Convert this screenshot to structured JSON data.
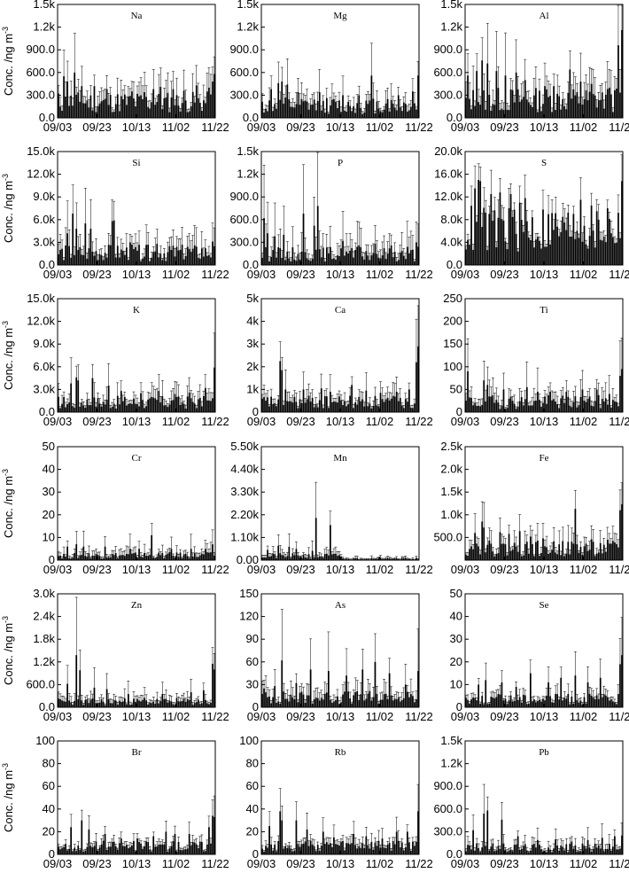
{
  "figure": {
    "ylabel": "Conc. /ng m",
    "ylabel_sup": "-3",
    "xticks": [
      "09/03",
      "09/23",
      "10/13",
      "11/02",
      "11/22"
    ]
  },
  "chart_data": [
    {
      "type": "bar",
      "title": "Na",
      "ylim": [
        0,
        1500
      ],
      "yticks": [
        "0.0",
        "300.0",
        "600.0",
        "900.0",
        "1.2k",
        "1.5k"
      ],
      "seed": 11,
      "base": 260,
      "spikes": [
        [
          3,
          550
        ],
        [
          5,
          480
        ],
        [
          9,
          600
        ],
        [
          13,
          420
        ],
        [
          20,
          420
        ],
        [
          27,
          380
        ],
        [
          41,
          350
        ],
        [
          48,
          340
        ],
        [
          53,
          380
        ],
        [
          57,
          410
        ],
        [
          64,
          380
        ],
        [
          70,
          360
        ],
        [
          77,
          430
        ],
        [
          84,
          400
        ],
        [
          86,
          480
        ],
        [
          87,
          580
        ]
      ],
      "errFrac": 0.7
    },
    {
      "type": "bar",
      "title": "Mg",
      "ylim": [
        0,
        1500
      ],
      "yticks": [
        "0.0",
        "300.0",
        "600.0",
        "900.0",
        "1.2k",
        "1.5k"
      ],
      "seed": 12,
      "base": 200,
      "spikes": [
        [
          5,
          380
        ],
        [
          9,
          460
        ],
        [
          11,
          480
        ],
        [
          14,
          440
        ],
        [
          20,
          340
        ],
        [
          32,
          340
        ],
        [
          45,
          300
        ],
        [
          54,
          300
        ],
        [
          61,
          560
        ],
        [
          70,
          250
        ],
        [
          76,
          300
        ],
        [
          84,
          350
        ],
        [
          87,
          560
        ]
      ],
      "errFrac": 0.7
    },
    {
      "type": "bar",
      "title": "Al",
      "ylim": [
        0,
        1500
      ],
      "yticks": [
        "0.0",
        "300.0",
        "600.0",
        "900.0",
        "1.2k",
        "1.5k"
      ],
      "seed": 13,
      "base": 300,
      "spikes": [
        [
          1,
          560
        ],
        [
          6,
          620
        ],
        [
          9,
          760
        ],
        [
          12,
          720
        ],
        [
          17,
          620
        ],
        [
          22,
          560
        ],
        [
          28,
          600
        ],
        [
          33,
          500
        ],
        [
          44,
          420
        ],
        [
          49,
          420
        ],
        [
          58,
          640
        ],
        [
          64,
          480
        ],
        [
          70,
          450
        ],
        [
          80,
          400
        ],
        [
          85,
          960
        ],
        [
          87,
          1160
        ]
      ],
      "errFrac": 0.8
    },
    {
      "type": "bar",
      "title": "Si",
      "ylim": [
        0,
        15000
      ],
      "yticks": [
        "0.0",
        "3.0k",
        "6.0k",
        "9.0k",
        "12.0k",
        "15.0k"
      ],
      "seed": 14,
      "base": 2000,
      "spikes": [
        [
          5,
          4200
        ],
        [
          8,
          6800
        ],
        [
          10,
          4800
        ],
        [
          15,
          5500
        ],
        [
          18,
          4800
        ],
        [
          30,
          5800
        ],
        [
          31,
          5900
        ],
        [
          40,
          3000
        ],
        [
          55,
          2800
        ],
        [
          62,
          2500
        ],
        [
          72,
          2400
        ],
        [
          80,
          2200
        ],
        [
          86,
          3100
        ]
      ],
      "errFrac": 0.8
    },
    {
      "type": "bar",
      "title": "P",
      "ylim": [
        0,
        1500
      ],
      "yticks": [
        "0.0",
        "300.0",
        "600.0",
        "900.0",
        "1.2k",
        "1.5k"
      ],
      "seed": 15,
      "base": 180,
      "spikes": [
        [
          1,
          620
        ],
        [
          3,
          420
        ],
        [
          7,
          380
        ],
        [
          12,
          400
        ],
        [
          23,
          680
        ],
        [
          29,
          520
        ],
        [
          31,
          780
        ],
        [
          45,
          320
        ],
        [
          54,
          260
        ],
        [
          63,
          280
        ],
        [
          72,
          260
        ],
        [
          81,
          240
        ],
        [
          86,
          300
        ]
      ],
      "errFrac": 1.1
    },
    {
      "type": "bar",
      "title": "S",
      "ylim": [
        0,
        20000
      ],
      "yticks": [
        "0.0",
        "4.0k",
        "8.0k",
        "12.0k",
        "16.0k",
        "20.0k"
      ],
      "seed": 16,
      "base": 8000,
      "spikes": [
        [
          5,
          13500
        ],
        [
          7,
          15000
        ],
        [
          8,
          14800
        ],
        [
          14,
          12500
        ],
        [
          19,
          12800
        ],
        [
          25,
          12500
        ],
        [
          30,
          11000
        ],
        [
          33,
          11800
        ],
        [
          49,
          6200
        ],
        [
          55,
          7500
        ],
        [
          60,
          9000
        ],
        [
          64,
          11500
        ],
        [
          74,
          8000
        ],
        [
          79,
          10000
        ],
        [
          87,
          14800
        ]
      ],
      "errFrac": 0.3
    },
    {
      "type": "bar",
      "title": "K",
      "ylim": [
        0,
        15000
      ],
      "yticks": [
        "0.0",
        "3.0k",
        "6.0k",
        "9.0k",
        "12.0k",
        "15.0k"
      ],
      "seed": 17,
      "base": 1600,
      "spikes": [
        [
          7,
          3800
        ],
        [
          10,
          4600
        ],
        [
          11,
          4200
        ],
        [
          19,
          4500
        ],
        [
          28,
          3500
        ],
        [
          35,
          2800
        ],
        [
          46,
          2500
        ],
        [
          56,
          2800
        ],
        [
          65,
          2400
        ],
        [
          73,
          2600
        ],
        [
          82,
          3200
        ],
        [
          87,
          5900
        ]
      ],
      "errFrac": 0.8
    },
    {
      "type": "bar",
      "title": "Ca",
      "ylim": [
        0,
        5000
      ],
      "yticks": [
        "0",
        "1k",
        "2k",
        "3k",
        "4k",
        "5k"
      ],
      "seed": 18,
      "base": 550,
      "spikes": [
        [
          10,
          2250
        ],
        [
          11,
          1850
        ],
        [
          13,
          1000
        ],
        [
          23,
          1000
        ],
        [
          33,
          1050
        ],
        [
          38,
          900
        ],
        [
          50,
          1200
        ],
        [
          58,
          950
        ],
        [
          66,
          850
        ],
        [
          75,
          900
        ],
        [
          82,
          1000
        ],
        [
          86,
          2200
        ],
        [
          87,
          2900
        ]
      ],
      "errFrac": 0.7
    },
    {
      "type": "bar",
      "title": "Ti",
      "ylim": [
        0,
        250
      ],
      "yticks": [
        "0",
        "50",
        "100",
        "150",
        "200",
        "250"
      ],
      "seed": 19,
      "base": 28,
      "spikes": [
        [
          1,
          90
        ],
        [
          10,
          70
        ],
        [
          12,
          60
        ],
        [
          21,
          50
        ],
        [
          34,
          55
        ],
        [
          40,
          45
        ],
        [
          47,
          45
        ],
        [
          56,
          45
        ],
        [
          65,
          50
        ],
        [
          73,
          50
        ],
        [
          80,
          40
        ],
        [
          86,
          80
        ],
        [
          87,
          95
        ]
      ],
      "errFrac": 0.9
    },
    {
      "type": "bar",
      "title": "Cr",
      "ylim": [
        0,
        50
      ],
      "yticks": [
        "0",
        "10",
        "20",
        "30",
        "40",
        "50"
      ],
      "seed": 20,
      "base": 2.6,
      "spikes": [
        [
          5,
          6
        ],
        [
          10,
          7
        ],
        [
          14,
          6
        ],
        [
          26,
          6
        ],
        [
          40,
          5
        ],
        [
          45,
          5
        ],
        [
          52,
          11
        ],
        [
          63,
          5
        ],
        [
          74,
          5
        ],
        [
          82,
          5
        ],
        [
          86,
          7
        ]
      ],
      "errFrac": 1.0
    },
    {
      "type": "bar",
      "title": "Mn",
      "ylim": [
        0,
        5500
      ],
      "yticks": [
        "0.00",
        "1.10k",
        "2.20k",
        "3.30k",
        "4.40k",
        "5.50k"
      ],
      "seed": 21,
      "base": 250,
      "spikes": [
        [
          3,
          500
        ],
        [
          9,
          700
        ],
        [
          15,
          650
        ],
        [
          19,
          550
        ],
        [
          28,
          450
        ],
        [
          30,
          2050
        ],
        [
          38,
          1700
        ],
        [
          43,
          250
        ]
      ],
      "errFrac": 0.9,
      "tail": 80
    },
    {
      "type": "bar",
      "title": "Fe",
      "ylim": [
        0,
        2500
      ],
      "yticks": [
        "500.0",
        "1.0k",
        "1.5k",
        "2.0k",
        "2.5k"
      ],
      "seed": 22,
      "base": 320,
      "spikes": [
        [
          5,
          600
        ],
        [
          9,
          850
        ],
        [
          10,
          720
        ],
        [
          19,
          620
        ],
        [
          24,
          580
        ],
        [
          30,
          640
        ],
        [
          36,
          520
        ],
        [
          43,
          480
        ],
        [
          54,
          420
        ],
        [
          61,
          1130
        ],
        [
          70,
          460
        ],
        [
          79,
          450
        ],
        [
          86,
          1100
        ],
        [
          87,
          1230
        ]
      ],
      "errFrac": 0.7
    },
    {
      "type": "bar",
      "title": "Zn",
      "ylim": [
        0,
        3000
      ],
      "yticks": [
        "0.0",
        "600.0",
        "1.2k",
        "1.8k",
        "2.4k",
        "3.0k"
      ],
      "seed": 23,
      "base": 180,
      "spikes": [
        [
          5,
          620
        ],
        [
          10,
          1380
        ],
        [
          12,
          980
        ],
        [
          20,
          520
        ],
        [
          27,
          480
        ],
        [
          39,
          350
        ],
        [
          48,
          250
        ],
        [
          58,
          350
        ],
        [
          66,
          250
        ],
        [
          74,
          400
        ],
        [
          81,
          450
        ],
        [
          86,
          1150
        ],
        [
          87,
          1000
        ]
      ],
      "errFrac": 0.9
    },
    {
      "type": "bar",
      "title": "As",
      "ylim": [
        0,
        150
      ],
      "yticks": [
        "0",
        "30",
        "60",
        "90",
        "120",
        "150"
      ],
      "seed": 24,
      "base": 16,
      "spikes": [
        [
          1,
          25
        ],
        [
          7,
          28
        ],
        [
          11,
          62
        ],
        [
          19,
          32
        ],
        [
          27,
          50
        ],
        [
          37,
          48
        ],
        [
          47,
          42
        ],
        [
          56,
          50
        ],
        [
          63,
          60
        ],
        [
          71,
          45
        ],
        [
          80,
          30
        ],
        [
          87,
          48
        ]
      ],
      "errFrac": 0.9
    },
    {
      "type": "bar",
      "title": "Se",
      "ylim": [
        0,
        50
      ],
      "yticks": [
        "0",
        "10",
        "20",
        "30",
        "40",
        "50"
      ],
      "seed": 25,
      "base": 4.5,
      "spikes": [
        [
          7,
          10
        ],
        [
          11,
          12
        ],
        [
          20,
          11
        ],
        [
          28,
          9
        ],
        [
          36,
          15
        ],
        [
          46,
          11
        ],
        [
          53,
          13
        ],
        [
          61,
          14
        ],
        [
          68,
          11
        ],
        [
          75,
          13
        ],
        [
          86,
          19
        ],
        [
          87,
          23
        ]
      ],
      "errFrac": 0.6
    },
    {
      "type": "bar",
      "title": "Br",
      "ylim": [
        0,
        100
      ],
      "yticks": [
        "0",
        "20",
        "40",
        "60",
        "80",
        "100"
      ],
      "seed": 26,
      "base": 9,
      "spikes": [
        [
          7,
          24
        ],
        [
          13,
          30
        ],
        [
          17,
          22
        ],
        [
          26,
          18
        ],
        [
          35,
          14
        ],
        [
          44,
          14
        ],
        [
          53,
          16
        ],
        [
          60,
          20
        ],
        [
          65,
          18
        ],
        [
          73,
          18
        ],
        [
          84,
          24
        ],
        [
          86,
          34
        ],
        [
          87,
          33
        ]
      ],
      "errFrac": 0.5
    },
    {
      "type": "bar",
      "title": "Rb",
      "ylim": [
        0,
        100
      ],
      "yticks": [
        "0",
        "20",
        "40",
        "60",
        "80",
        "100"
      ],
      "seed": 27,
      "base": 9,
      "spikes": [
        [
          4,
          25
        ],
        [
          10,
          38
        ],
        [
          11,
          30
        ],
        [
          19,
          30
        ],
        [
          25,
          22
        ],
        [
          34,
          20
        ],
        [
          40,
          15
        ],
        [
          51,
          18
        ],
        [
          58,
          16
        ],
        [
          67,
          14
        ],
        [
          75,
          20
        ],
        [
          81,
          20
        ],
        [
          87,
          38
        ]
      ],
      "errFrac": 0.6
    },
    {
      "type": "bar",
      "title": "Pb",
      "ylim": [
        0,
        1500
      ],
      "yticks": [
        "0.0",
        "300.0",
        "600.0",
        "900.0",
        "1.2k",
        "1.5k"
      ],
      "seed": 28,
      "base": 110,
      "spikes": [
        [
          4,
          320
        ],
        [
          10,
          540
        ],
        [
          12,
          580
        ],
        [
          20,
          460
        ],
        [
          29,
          240
        ],
        [
          40,
          190
        ],
        [
          50,
          200
        ],
        [
          59,
          170
        ],
        [
          68,
          190
        ],
        [
          76,
          220
        ],
        [
          83,
          240
        ],
        [
          87,
          250
        ]
      ],
      "errFrac": 0.7
    }
  ]
}
